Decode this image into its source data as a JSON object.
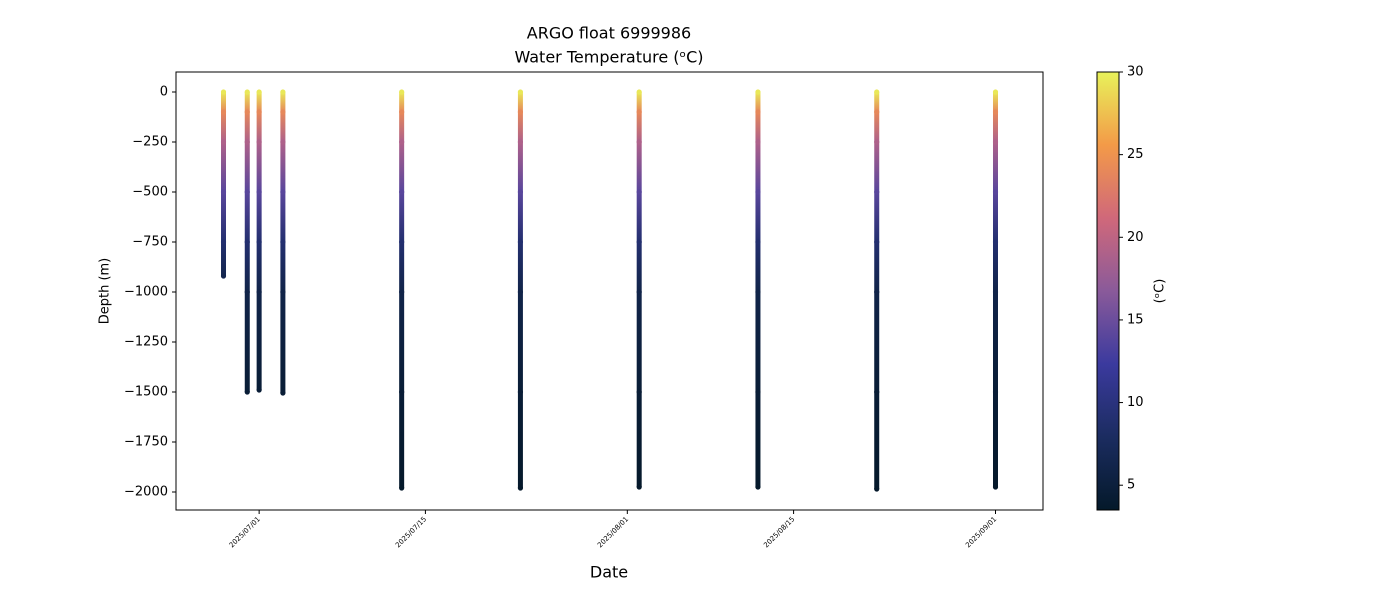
{
  "chart_data": {
    "type": "profiles",
    "title": "ARGO float 6999986",
    "subtitle": "Water Temperature (ᵒC)",
    "x_label": "Date",
    "y_label": "Depth (m)",
    "colorbar_label": "(ᵒC)",
    "xlim": [
      "2025-06-24",
      "2025-09-05"
    ],
    "xticks": [
      "2025/07/01",
      "2025/07/15",
      "2025/08/01",
      "2025/08/15",
      "2025/09/01"
    ],
    "ylim": [
      -2090,
      100
    ],
    "yticks": [
      0,
      {
        "value": -250,
        "label": "−250"
      },
      {
        "value": -500,
        "label": "−500"
      },
      {
        "value": -750,
        "label": "−750"
      },
      {
        "value": -1000,
        "label": "−1000"
      },
      {
        "value": -1250,
        "label": "−1250"
      },
      {
        "value": -1500,
        "label": "−1500"
      },
      {
        "value": -1750,
        "label": "−1750"
      },
      {
        "value": -2000,
        "label": "−2000"
      }
    ],
    "clim": [
      3.5,
      30
    ],
    "cticks": [
      5,
      10,
      15,
      20,
      25,
      30
    ],
    "colormap": [
      "#04192a",
      "#1b2c60",
      "#3b3a9e",
      "#8a5a9a",
      "#d0687a",
      "#f39a48",
      "#e8f25a"
    ],
    "profiles": [
      {
        "date": "2025-06-28",
        "depth": [
          0,
          -100,
          -250,
          -500,
          -750,
          -920
        ],
        "temperature": [
          29.5,
          24,
          19,
          14,
          9,
          6.5
        ]
      },
      {
        "date": "2025-06-30",
        "depth": [
          0,
          -100,
          -250,
          -500,
          -750,
          -1000,
          -1500
        ],
        "temperature": [
          29.5,
          24,
          19,
          14,
          9,
          6,
          4.5
        ]
      },
      {
        "date": "2025-07-01",
        "depth": [
          0,
          -100,
          -250,
          -500,
          -750,
          -1000,
          -1490
        ],
        "temperature": [
          29.5,
          24,
          19,
          14,
          9,
          6,
          4.5
        ]
      },
      {
        "date": "2025-07-03",
        "depth": [
          0,
          -100,
          -250,
          -500,
          -750,
          -1000,
          -1505
        ],
        "temperature": [
          29.5,
          24,
          19,
          14,
          9,
          6,
          4.5
        ]
      },
      {
        "date": "2025-07-13",
        "depth": [
          0,
          -100,
          -250,
          -500,
          -750,
          -1000,
          -1500,
          -1980
        ],
        "temperature": [
          29.5,
          24,
          19,
          14,
          9,
          6,
          4.5,
          3.6
        ]
      },
      {
        "date": "2025-07-23",
        "depth": [
          0,
          -100,
          -250,
          -500,
          -750,
          -1000,
          -1500,
          -1980
        ],
        "temperature": [
          29.5,
          24,
          19,
          14,
          9,
          6,
          4.5,
          3.6
        ]
      },
      {
        "date": "2025-08-02",
        "depth": [
          0,
          -100,
          -250,
          -500,
          -750,
          -1000,
          -1500,
          -1975
        ],
        "temperature": [
          29.5,
          24,
          19,
          14,
          9,
          6,
          4.5,
          3.6
        ]
      },
      {
        "date": "2025-08-12",
        "depth": [
          0,
          -100,
          -250,
          -500,
          -750,
          -1000,
          -1500,
          -1975
        ],
        "temperature": [
          29.5,
          24,
          19,
          14,
          9,
          6,
          4.5,
          3.6
        ]
      },
      {
        "date": "2025-08-22",
        "depth": [
          0,
          -100,
          -250,
          -500,
          -750,
          -1000,
          -1500,
          -1985
        ],
        "temperature": [
          29.5,
          24,
          19,
          14,
          9,
          6,
          4.5,
          3.6
        ]
      },
      {
        "date": "2025-09-01",
        "depth": [
          0,
          -100,
          -250,
          -500,
          -750,
          -1000,
          -1500,
          -1975
        ],
        "temperature": [
          29.5,
          24,
          19,
          14,
          9,
          6,
          4.5,
          3.6
        ]
      }
    ]
  }
}
